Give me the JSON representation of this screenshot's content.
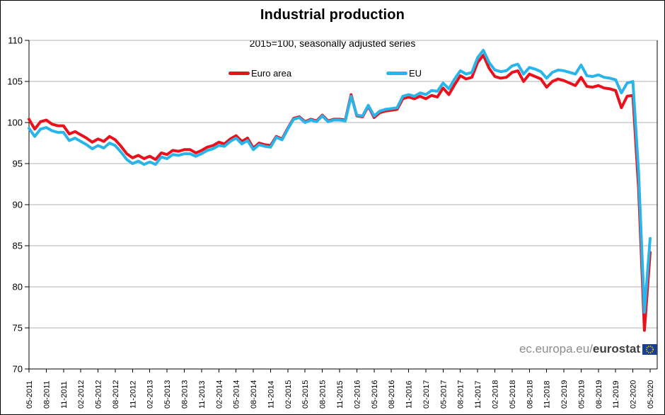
{
  "title": "Industrial production",
  "subtitle": "2015=100, seasonally adjusted series",
  "footer": {
    "site": "ec.europa.eu/",
    "brand": "eurostat"
  },
  "colors": {
    "euro_area": "#e8111c",
    "eu": "#29b5ea",
    "grid": "#b3b3b3",
    "axis": "#000000",
    "footer_gray": "#8c8c8c",
    "footer_dark": "#3f3f3f",
    "logo_navy": "#17418f",
    "logo_gold": "#ffcc00"
  },
  "chart_data": {
    "type": "line",
    "title": "Industrial production",
    "subtitle": "2015=100, seasonally adjusted series",
    "x_frequency": "monthly",
    "x_start": "05-2011",
    "x_end": "05-2020",
    "tick_labels": [
      "05-2011",
      "08-2011",
      "11-2011",
      "02-2012",
      "05-2012",
      "08-2012",
      "11-2012",
      "02-2013",
      "05-2013",
      "08-2013",
      "11-2013",
      "02-2014",
      "05-2014",
      "08-2014",
      "11-2014",
      "02-2015",
      "05-2015",
      "08-2015",
      "11-2015",
      "02-2016",
      "05-2016",
      "08-2016",
      "11-2016",
      "02-2017",
      "05-2017",
      "08-2017",
      "11-2017",
      "02-2018",
      "05-2018",
      "08-2018",
      "11-2018",
      "02-2019",
      "05-2019",
      "08-2019",
      "11-2019",
      "02-2020",
      "05-2020"
    ],
    "tick_every_n_months": 3,
    "ylim": [
      70,
      110
    ],
    "y_ticks": [
      70,
      75,
      80,
      85,
      90,
      95,
      100,
      105,
      110
    ],
    "grid": "horizontal",
    "legend_position": "top-inside",
    "series": [
      {
        "name": "Euro area",
        "color": "#e8111c",
        "values": [
          100.4,
          99.2,
          100.1,
          100.3,
          99.8,
          99.6,
          99.6,
          98.6,
          98.9,
          98.5,
          98.1,
          97.6,
          98.0,
          97.7,
          98.3,
          97.9,
          97.1,
          96.2,
          95.7,
          96.0,
          95.6,
          95.9,
          95.5,
          96.3,
          96.1,
          96.6,
          96.5,
          96.7,
          96.7,
          96.3,
          96.6,
          97.0,
          97.2,
          97.6,
          97.4,
          98.0,
          98.4,
          97.7,
          98.1,
          96.9,
          97.5,
          97.3,
          97.2,
          98.3,
          98.0,
          99.3,
          100.5,
          100.7,
          100.1,
          100.4,
          100.2,
          100.9,
          100.2,
          100.4,
          100.4,
          100.3,
          103.4,
          100.8,
          100.7,
          102.0,
          100.6,
          101.2,
          101.4,
          101.5,
          101.6,
          102.9,
          103.1,
          102.9,
          103.2,
          102.9,
          103.3,
          103.1,
          104.2,
          103.4,
          104.6,
          105.7,
          105.3,
          105.5,
          107.3,
          108.2,
          106.6,
          105.6,
          105.4,
          105.5,
          106.1,
          106.3,
          105.0,
          105.9,
          105.6,
          105.3,
          104.3,
          105.0,
          105.3,
          105.1,
          104.8,
          104.5,
          105.5,
          104.4,
          104.3,
          104.5,
          104.2,
          104.1,
          103.9,
          101.8,
          103.2,
          103.3,
          91.9,
          74.7,
          84.2
        ]
      },
      {
        "name": "EU",
        "color": "#29b5ea",
        "values": [
          99.3,
          98.3,
          99.2,
          99.4,
          99.0,
          98.8,
          98.8,
          97.8,
          98.1,
          97.7,
          97.3,
          96.8,
          97.2,
          96.9,
          97.5,
          97.2,
          96.4,
          95.5,
          95.0,
          95.3,
          94.9,
          95.2,
          94.9,
          95.8,
          95.6,
          96.1,
          96.0,
          96.2,
          96.2,
          95.9,
          96.2,
          96.6,
          96.8,
          97.2,
          97.1,
          97.7,
          98.1,
          97.4,
          97.8,
          96.7,
          97.3,
          97.1,
          97.0,
          98.2,
          97.9,
          99.2,
          100.4,
          100.6,
          100.0,
          100.3,
          100.1,
          100.8,
          100.1,
          100.3,
          100.3,
          100.2,
          103.2,
          100.9,
          100.8,
          102.1,
          100.8,
          101.4,
          101.6,
          101.7,
          101.8,
          103.2,
          103.4,
          103.2,
          103.6,
          103.4,
          103.9,
          103.8,
          104.8,
          104.1,
          105.3,
          106.3,
          105.9,
          106.1,
          107.9,
          108.8,
          107.3,
          106.4,
          106.2,
          106.3,
          106.9,
          107.1,
          105.9,
          106.7,
          106.5,
          106.2,
          105.4,
          106.1,
          106.4,
          106.3,
          106.1,
          105.9,
          107.0,
          105.7,
          105.6,
          105.8,
          105.5,
          105.4,
          105.2,
          103.6,
          104.8,
          105.0,
          93.9,
          76.9,
          85.9
        ]
      }
    ]
  }
}
